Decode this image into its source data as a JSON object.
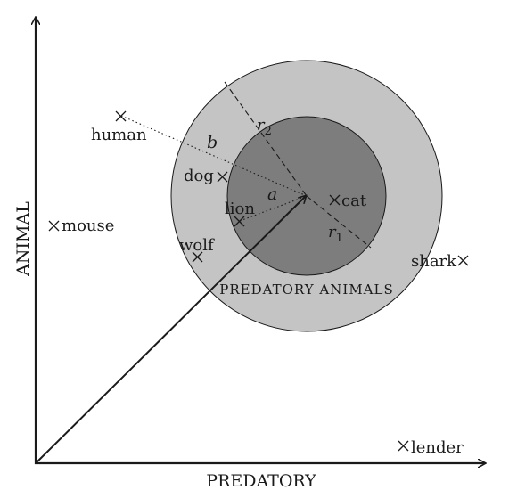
{
  "axes": {
    "x_label": "PREDATORY",
    "y_label": "ANIMAL"
  },
  "regions": {
    "outer_label": "PREDATORY ANIMALS"
  },
  "radii": {
    "r1": "r",
    "r1_sub": "1",
    "r2": "r",
    "r2_sub": "2"
  },
  "distances": {
    "a": "a",
    "b": "b"
  },
  "points": [
    {
      "id": "human",
      "label": "human"
    },
    {
      "id": "dog",
      "label": "dog"
    },
    {
      "id": "lion",
      "label": "lion"
    },
    {
      "id": "cat",
      "label": "cat"
    },
    {
      "id": "mouse",
      "label": "mouse"
    },
    {
      "id": "wolf",
      "label": "wolf"
    },
    {
      "id": "shark",
      "label": "shark"
    },
    {
      "id": "lender",
      "label": "lender"
    }
  ],
  "colors": {
    "outer_circle": "#c4c4c4",
    "inner_circle": "#7d7d7d",
    "ink": "#1a1a1a"
  }
}
